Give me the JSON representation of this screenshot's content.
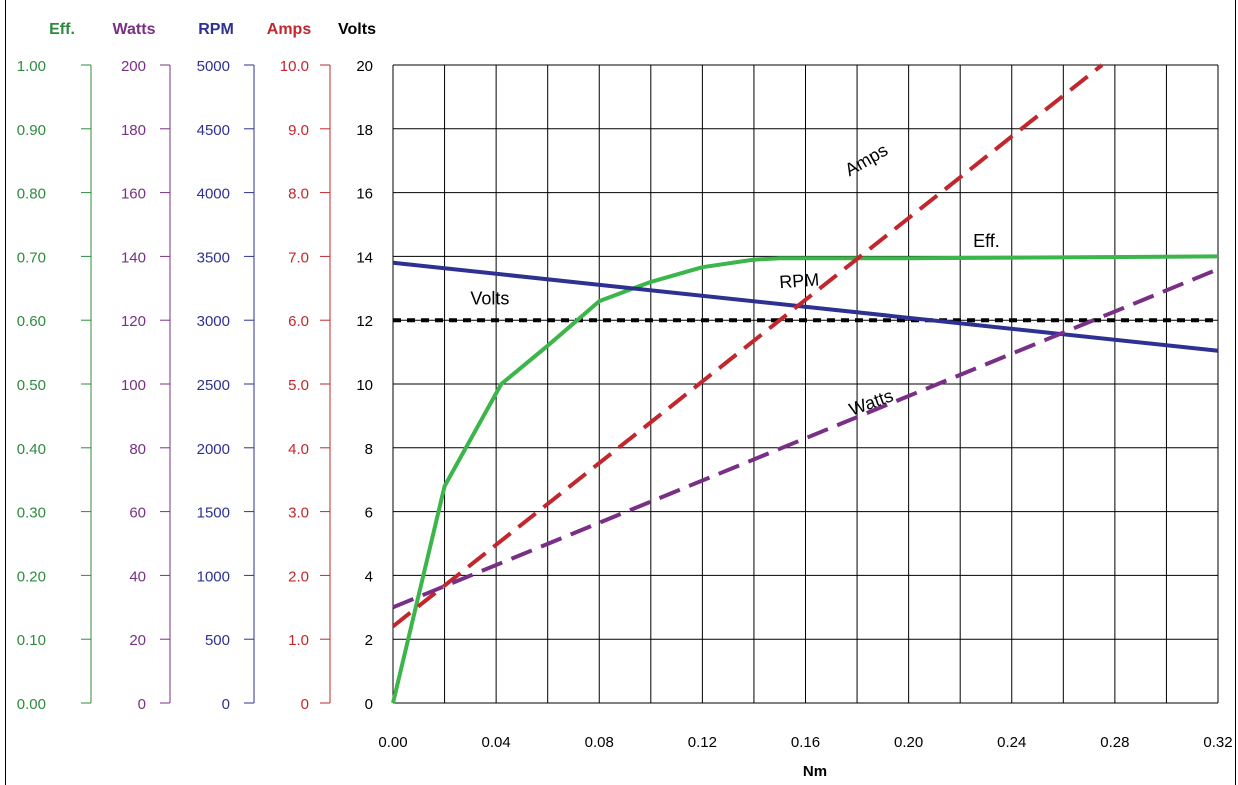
{
  "chart_data": {
    "type": "line",
    "xlabel": "Nm",
    "x_ticks": [
      "0.00",
      "0.04",
      "0.08",
      "0.12",
      "0.16",
      "0.20",
      "0.24",
      "0.28",
      "0.32"
    ],
    "xlim": [
      0,
      0.32
    ],
    "ylim": [
      0,
      20
    ],
    "grid": true,
    "axes": [
      {
        "name": "Eff.",
        "color": "#2e8b3e",
        "ticks": [
          "0.00",
          "0.10",
          "0.20",
          "0.30",
          "0.40",
          "0.50",
          "0.60",
          "0.70",
          "0.80",
          "0.90",
          "1.00"
        ],
        "range": [
          0,
          1
        ]
      },
      {
        "name": "Watts",
        "color": "#7a2f86",
        "ticks": [
          "0",
          "20",
          "40",
          "60",
          "80",
          "100",
          "120",
          "140",
          "160",
          "180",
          "200"
        ],
        "range": [
          0,
          200
        ]
      },
      {
        "name": "RPM",
        "color": "#2e3192",
        "ticks": [
          "0",
          "500",
          "1000",
          "1500",
          "2000",
          "2500",
          "3000",
          "3500",
          "4000",
          "4500",
          "5000"
        ],
        "range": [
          0,
          5000
        ]
      },
      {
        "name": "Amps",
        "color": "#c1272d",
        "ticks": [
          "0",
          "1.0",
          "2.0",
          "3.0",
          "4.0",
          "5.0",
          "6.0",
          "7.0",
          "8.0",
          "9.0",
          "10.0"
        ],
        "range": [
          0,
          10
        ]
      },
      {
        "name": "Volts",
        "color": "#000000",
        "ticks": [
          "0",
          "2",
          "4",
          "6",
          "8",
          "10",
          "12",
          "14",
          "16",
          "18",
          "20"
        ],
        "range": [
          0,
          20
        ]
      }
    ],
    "series": [
      {
        "name": "Volts",
        "color": "#000000",
        "dash": "dotted",
        "points": [
          [
            0,
            12
          ],
          [
            0.32,
            12
          ]
        ]
      },
      {
        "name": "Eff.",
        "color": "#3cb54a",
        "dash": "solid",
        "points": [
          [
            0,
            0.0
          ],
          [
            0.02,
            0.34
          ],
          [
            0.042,
            0.5
          ],
          [
            0.06,
            0.56
          ],
          [
            0.08,
            0.63
          ],
          [
            0.1,
            0.66
          ],
          [
            0.12,
            0.683
          ],
          [
            0.14,
            0.695
          ],
          [
            0.15,
            0.697
          ],
          [
            0.2,
            0.697
          ],
          [
            0.32,
            0.7
          ]
        ]
      },
      {
        "name": "RPM",
        "color": "#2e3192",
        "dash": "solid",
        "points": [
          [
            0,
            3450
          ],
          [
            0.32,
            2760
          ]
        ]
      },
      {
        "name": "Amps",
        "color": "#c1272d",
        "dash": "dashed",
        "points": [
          [
            0,
            1.2
          ],
          [
            0.275,
            10.0
          ]
        ]
      },
      {
        "name": "Watts",
        "color": "#7a2f86",
        "dash": "dashed",
        "points": [
          [
            0,
            30
          ],
          [
            0.32,
            136
          ]
        ]
      }
    ],
    "annotations": [
      {
        "text": "Volts",
        "x": 0.03,
        "y": 12.5
      },
      {
        "text": "Eff.",
        "x": 0.225,
        "y": 14.3
      },
      {
        "text": "RPM",
        "x": 0.15,
        "y": 13.0
      },
      {
        "text": "Amps",
        "x": 0.177,
        "y": 16.5
      },
      {
        "text": "Watts",
        "x": 0.178,
        "y": 9.0
      }
    ]
  }
}
